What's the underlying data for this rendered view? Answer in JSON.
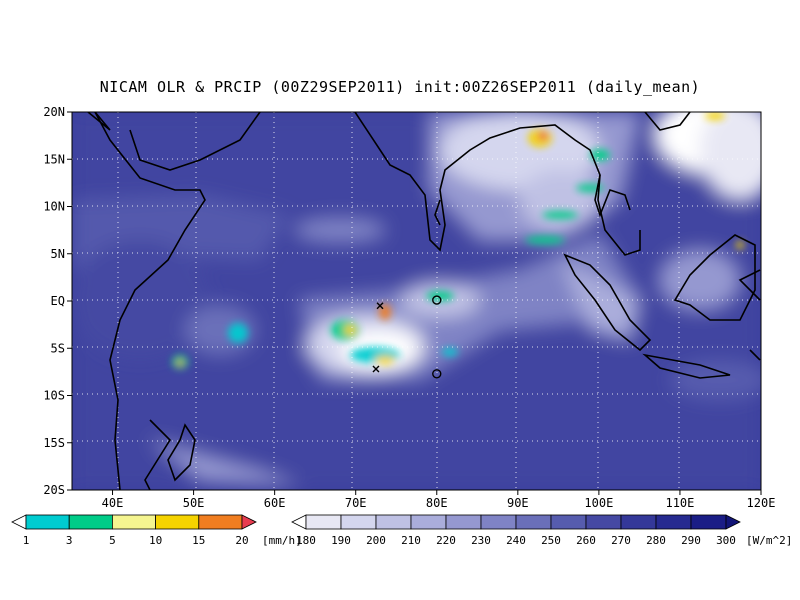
{
  "title": "NICAM OLR & PRCIP (00Z29SEP2011) init:00Z26SEP2011 (daily_mean)",
  "lat_ticks": [
    "20N",
    "15N",
    "10N",
    "5N",
    "EQ",
    "5S",
    "10S",
    "15S",
    "20S"
  ],
  "lon_ticks": [
    "40E",
    "50E",
    "60E",
    "70E",
    "80E",
    "90E",
    "100E",
    "110E",
    "120E"
  ],
  "map_extent": {
    "lon": [
      35,
      120
    ],
    "lat": [
      -20,
      20
    ]
  },
  "precip_colorbar": {
    "labels": [
      "1",
      "3",
      "5",
      "10",
      "15",
      "20"
    ],
    "unit": "[mm/h]",
    "colors": [
      "#ffffff",
      "#00ccd0",
      "#00cc88",
      "#f5f590",
      "#f5d300",
      "#f07d20",
      "#e83c50"
    ]
  },
  "olr_colorbar": {
    "labels": [
      "180",
      "190",
      "200",
      "210",
      "220",
      "230",
      "240",
      "250",
      "260",
      "270",
      "280",
      "290",
      "300"
    ],
    "unit": "[W/m^2]",
    "colors": [
      "#ffffff",
      "#e8e8f4",
      "#d4d6ee",
      "#bfc1e4",
      "#aaaddb",
      "#9598d0",
      "#7f83c5",
      "#6a6fb9",
      "#565cae",
      "#4549a3",
      "#343899",
      "#262a90",
      "#1a1d86",
      "#121577"
    ]
  },
  "markers": [
    {
      "type": "x",
      "lon": 73,
      "lat": -0.5
    },
    {
      "type": "x",
      "lon": 72.5,
      "lat": -7.2
    },
    {
      "type": "circle",
      "lon": 80,
      "lat": 0.1
    },
    {
      "type": "circle",
      "lon": 80,
      "lat": -7.7
    }
  ]
}
